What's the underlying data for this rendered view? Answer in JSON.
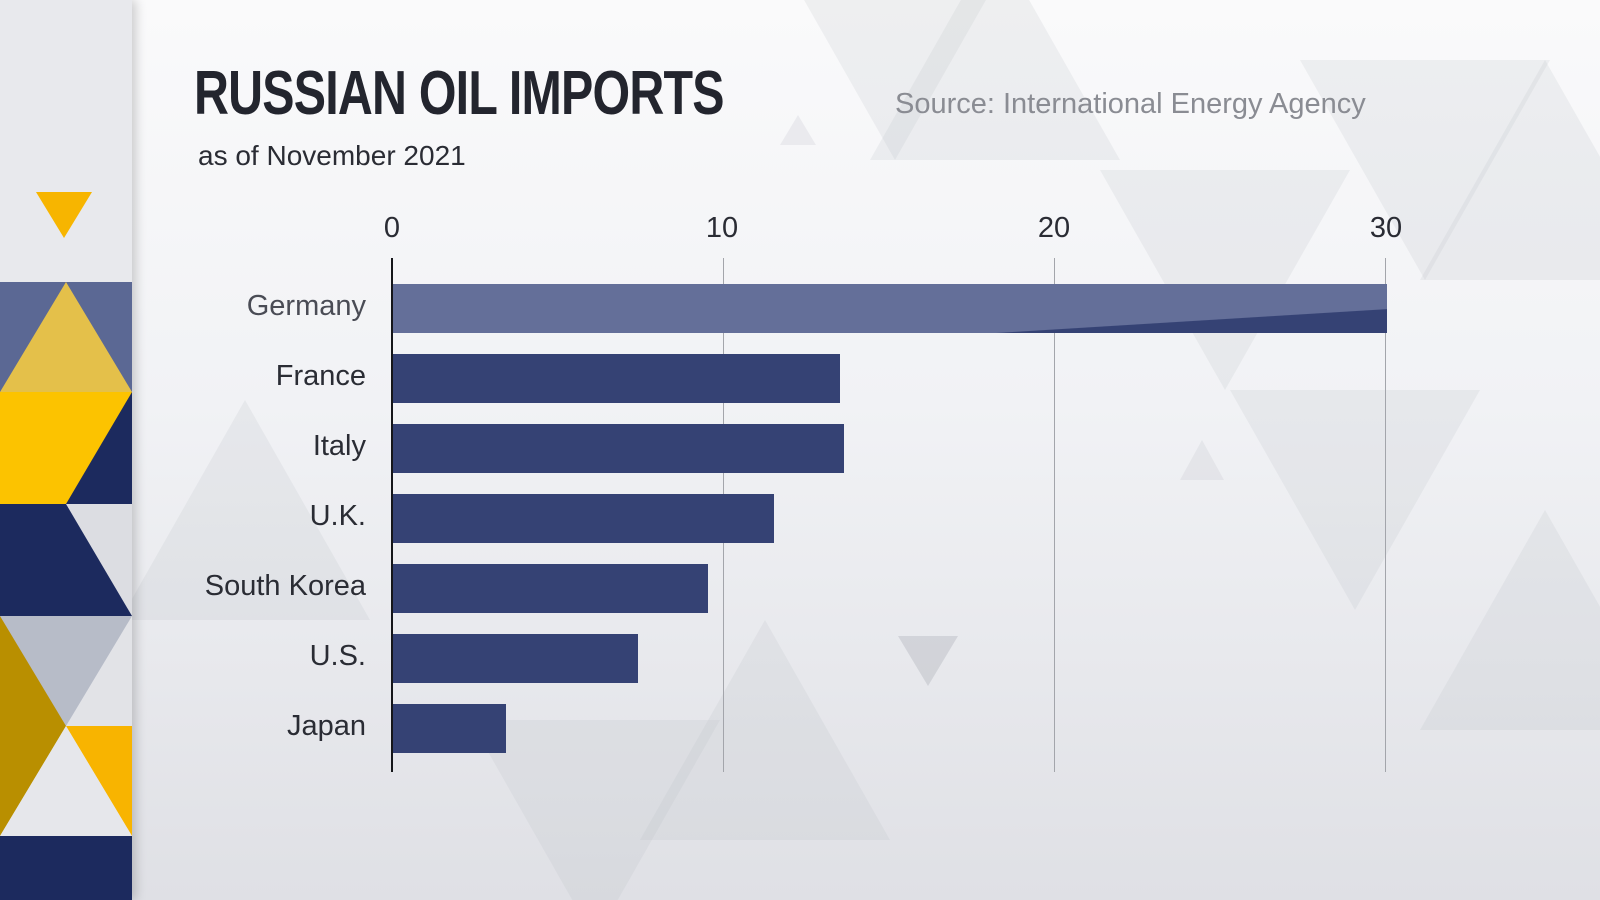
{
  "header": {
    "title": "RUSSIAN OIL IMPORTS",
    "subtitle": "as of November 2021",
    "source": "Source: International Energy Agency"
  },
  "axis": {
    "ticks": [
      "0",
      "10",
      "20",
      "30"
    ]
  },
  "categories": [
    "Germany",
    "France",
    "Italy",
    "U.K.",
    "South Korea",
    "U.S.",
    "Japan"
  ],
  "colors": {
    "bar": "#354274",
    "bar_highlight": "#646f99",
    "title": "#23252e",
    "accent_yellow": "#f5b800",
    "accent_navy": "#1c2a5e"
  },
  "chart_data": {
    "type": "bar",
    "orientation": "horizontal",
    "title": "RUSSIAN OIL IMPORTS",
    "subtitle": "as of November 2021",
    "source": "Source: International Energy Agency",
    "categories": [
      "Germany",
      "France",
      "Italy",
      "U.K.",
      "South Korea",
      "U.S.",
      "Japan"
    ],
    "values": [
      30.0,
      13.5,
      13.6,
      11.5,
      9.5,
      7.4,
      3.4
    ],
    "xlabel": "",
    "ylabel": "",
    "xlim": [
      0,
      30
    ],
    "xticks": [
      0,
      10,
      20,
      30
    ],
    "grid": "vertical",
    "legend": "none",
    "axis_position": "top"
  }
}
